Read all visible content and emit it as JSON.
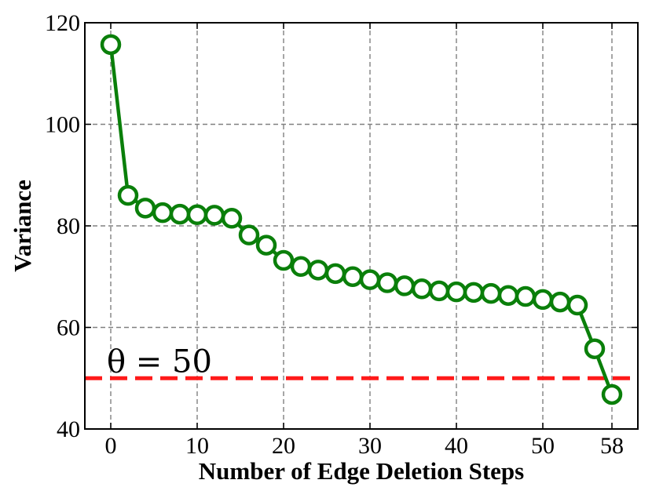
{
  "chart_data": {
    "type": "line",
    "title": "",
    "xlabel": "Number of Edge Deletion Steps",
    "ylabel": "Variance",
    "xlim": [
      -3,
      61
    ],
    "ylim": [
      40,
      120
    ],
    "xticks": [
      0,
      10,
      20,
      30,
      40,
      50,
      58
    ],
    "yticks": [
      40,
      60,
      80,
      100,
      120
    ],
    "grid": true,
    "series": [
      {
        "color": "#0a7f0a",
        "marker": "open-circle",
        "x": [
          0,
          2,
          4,
          6,
          8,
          10,
          12,
          14,
          16,
          18,
          20,
          22,
          24,
          26,
          28,
          30,
          32,
          34,
          36,
          38,
          40,
          42,
          44,
          46,
          48,
          50,
          52,
          54,
          56,
          58
        ],
        "y": [
          115.7,
          86.0,
          83.5,
          82.6,
          82.3,
          82.2,
          82.1,
          81.5,
          78.2,
          76.2,
          73.2,
          72.0,
          71.3,
          70.6,
          70.0,
          69.4,
          68.8,
          68.2,
          67.6,
          67.2,
          67.0,
          66.9,
          66.7,
          66.3,
          66.1,
          65.5,
          65.0,
          64.4,
          55.8,
          46.8
        ]
      }
    ],
    "threshold": {
      "value": 50,
      "label": "θ = 50",
      "color": "#ff1a1a",
      "style": "dashed"
    }
  }
}
